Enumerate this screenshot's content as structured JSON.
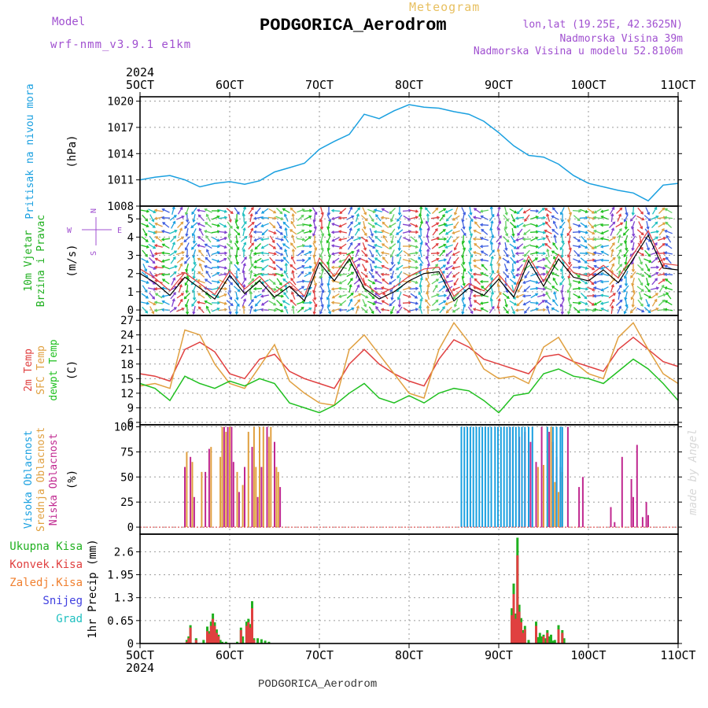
{
  "header": {
    "model_label": "Model",
    "model_name": "wrf-nmm_v3.9.1 e1km",
    "product": "Meteogram",
    "station": "PODGORICA_Aerodrom",
    "lonlat": "lon,lat (19.25E, 42.3625N)",
    "elevation": "Nadmorska Visina 39m",
    "elevation_model": "Nadmorska Visina u modelu 52.8106m"
  },
  "time_axis": {
    "year": "2024",
    "labels": [
      "5OCT",
      "6OCT",
      "7OCT",
      "8OCT",
      "9OCT",
      "10OCT",
      "11OCT"
    ]
  },
  "watermark": "made by Angel",
  "footer": "PODGORICA_Aerodrom",
  "colors": {
    "pressure": "#1aa0e0",
    "temp2m": "#e04040",
    "sfc": "#e0a040",
    "dewpt": "#20c020",
    "wind_label": "#20b020",
    "compass": "#a050d0",
    "low_cloud": "#c02890",
    "mid_cloud": "#e0a040",
    "high_cloud": "#1aa0e0",
    "total_precip": "#20b020",
    "conv_precip": "#e04040",
    "frz_precip": "#f08030",
    "snow": "#4040e0",
    "hail": "#20c0c0"
  },
  "chart_data": [
    {
      "type": "line",
      "name": "pressure",
      "ylabel_lines": [
        "Pritisak na nivou mora",
        "(hPa)"
      ],
      "ylim": [
        1008,
        1020.5
      ],
      "yticks": [
        1008,
        1011,
        1014,
        1017,
        1020
      ],
      "grid": true,
      "x_unit": "hours from 05 Oct 00 UTC",
      "series": [
        {
          "name": "Pritisak na nivou mora",
          "x": [
            0,
            4,
            8,
            12,
            16,
            20,
            24,
            28,
            32,
            36,
            40,
            44,
            48,
            52,
            56,
            60,
            64,
            68,
            72,
            76,
            80,
            84,
            88,
            92,
            96,
            100,
            104,
            108,
            112,
            116,
            120,
            124,
            128,
            132,
            136,
            140,
            144
          ],
          "values": [
            1011.0,
            1011.3,
            1011.5,
            1011.0,
            1010.2,
            1010.6,
            1010.8,
            1010.5,
            1010.9,
            1011.9,
            1012.4,
            1012.9,
            1014.5,
            1015.4,
            1016.2,
            1018.5,
            1018.0,
            1018.9,
            1019.6,
            1019.3,
            1019.2,
            1018.8,
            1018.5,
            1017.7,
            1016.4,
            1014.9,
            1013.8,
            1013.6,
            1012.8,
            1011.5,
            1010.6,
            1010.2,
            1009.8,
            1009.5,
            1008.6,
            1010.4,
            1010.6
          ]
        }
      ]
    },
    {
      "type": "line",
      "name": "wind",
      "ylabel_lines": [
        "10m Vjetar",
        "Brzina i Pravac",
        "(m/s)"
      ],
      "compass": [
        "N",
        "E",
        "S",
        "W"
      ],
      "ylim": [
        -0.3,
        5.7
      ],
      "yticks": [
        0,
        1,
        2,
        3,
        4,
        5
      ],
      "grid": true,
      "series": [
        {
          "name": "10m wind speed",
          "x": [
            0,
            4,
            8,
            12,
            16,
            20,
            24,
            28,
            32,
            36,
            40,
            44,
            48,
            52,
            56,
            60,
            64,
            68,
            72,
            76,
            80,
            84,
            88,
            92,
            96,
            100,
            104,
            108,
            112,
            116,
            120,
            124,
            128,
            132,
            136,
            140,
            144
          ],
          "values": [
            2.0,
            1.5,
            0.8,
            1.8,
            1.2,
            0.6,
            1.9,
            0.9,
            1.6,
            0.7,
            1.3,
            0.5,
            2.6,
            1.6,
            2.8,
            1.2,
            0.6,
            1.0,
            1.6,
            2.0,
            2.1,
            0.5,
            1.2,
            0.8,
            1.7,
            0.7,
            2.7,
            1.3,
            2.8,
            1.8,
            1.6,
            2.2,
            1.5,
            2.8,
            4.1,
            2.3,
            2.2
          ]
        }
      ],
      "barb_direction_deg": [
        130,
        280,
        45,
        200,
        310,
        90,
        160,
        20,
        250,
        120,
        330,
        70,
        180,
        260,
        40,
        140,
        300,
        210,
        100,
        350,
        60,
        230,
        170,
        290,
        10,
        150,
        240,
        80,
        320,
        190,
        110,
        270,
        30,
        200,
        140,
        60,
        300
      ]
    },
    {
      "type": "line",
      "name": "temperature",
      "ylabel_lines": [
        "2m Temp",
        "SFC Temp",
        "dewpt Temp",
        "(C)"
      ],
      "ylim": [
        5.5,
        28
      ],
      "yticks": [
        6,
        9,
        12,
        15,
        18,
        21,
        24,
        27
      ],
      "grid": true,
      "series": [
        {
          "name": "2m Temp",
          "x": [
            0,
            4,
            8,
            12,
            16,
            20,
            24,
            28,
            32,
            36,
            40,
            44,
            48,
            52,
            56,
            60,
            64,
            68,
            72,
            76,
            80,
            84,
            88,
            92,
            96,
            100,
            104,
            108,
            112,
            116,
            120,
            124,
            128,
            132,
            136,
            140,
            144
          ],
          "values": [
            16.0,
            15.5,
            14.5,
            21.0,
            22.5,
            20.5,
            16.0,
            15.0,
            19.0,
            20.0,
            16.5,
            15.0,
            14.0,
            13.0,
            18.0,
            21.0,
            18.0,
            16.0,
            14.5,
            13.5,
            19.0,
            23.0,
            21.5,
            19.0,
            18.0,
            17.0,
            16.0,
            19.5,
            20.0,
            18.5,
            17.5,
            16.5,
            21.0,
            23.5,
            21.0,
            18.5,
            17.5
          ]
        },
        {
          "name": "SFC Temp",
          "x": [
            0,
            4,
            8,
            12,
            16,
            20,
            24,
            28,
            32,
            36,
            40,
            44,
            48,
            52,
            56,
            60,
            64,
            68,
            72,
            76,
            80,
            84,
            88,
            92,
            96,
            100,
            104,
            108,
            112,
            116,
            120,
            124,
            128,
            132,
            136,
            140,
            144
          ],
          "values": [
            13.5,
            14.0,
            13.0,
            25.0,
            24.0,
            18.0,
            14.0,
            13.0,
            17.5,
            22.0,
            14.5,
            12.0,
            10.0,
            9.5,
            21.0,
            24.0,
            20.0,
            16.0,
            12.0,
            11.0,
            21.0,
            26.5,
            22.5,
            17.0,
            15.0,
            15.5,
            14.0,
            21.5,
            23.5,
            18.5,
            16.0,
            15.0,
            23.5,
            26.5,
            21.0,
            16.0,
            14.0
          ]
        },
        {
          "name": "dewpt Temp",
          "x": [
            0,
            4,
            8,
            12,
            16,
            20,
            24,
            28,
            32,
            36,
            40,
            44,
            48,
            52,
            56,
            60,
            64,
            68,
            72,
            76,
            80,
            84,
            88,
            92,
            96,
            100,
            104,
            108,
            112,
            116,
            120,
            124,
            128,
            132,
            136,
            140,
            144
          ],
          "values": [
            14.0,
            13.0,
            10.5,
            15.5,
            14.0,
            13.0,
            14.5,
            13.5,
            15.0,
            14.0,
            10.0,
            9.0,
            8.0,
            9.5,
            12.0,
            14.0,
            11.0,
            10.0,
            11.5,
            10.0,
            12.0,
            13.0,
            12.5,
            10.5,
            8.0,
            11.5,
            12.0,
            16.0,
            17.0,
            15.5,
            15.0,
            14.0,
            16.5,
            19.0,
            17.0,
            14.0,
            10.5
          ]
        }
      ]
    },
    {
      "type": "bar",
      "name": "cloud",
      "ylabel_lines": [
        "Visoka Oblacnost",
        "Srednja Oblacnost",
        "Niska Oblacnost",
        "(%)"
      ],
      "ylim": [
        -7,
        102
      ],
      "yticks": [
        0,
        25,
        50,
        75,
        100
      ],
      "grid": true,
      "series": [
        {
          "name": "Niska Oblacnost",
          "x": [
            12.0,
            13.5,
            14.5,
            17.5,
            18.5,
            22.5,
            23.5,
            24.5,
            25.0,
            26.5,
            28.0,
            30.0,
            31.5,
            32.5,
            34.0,
            36.0,
            37.5,
            99.0,
            101.5,
            103.0,
            104.5,
            106.0,
            107.5,
            109.5,
            110.5,
            111.5,
            112.5,
            114.5,
            117.5,
            118.5,
            126.0,
            127.0,
            129.0,
            131.5,
            132.0,
            133.0,
            134.5,
            135.5,
            136.0
          ],
          "values": [
            60,
            70,
            30,
            55,
            78,
            100,
            100,
            100,
            65,
            35,
            60,
            80,
            30,
            60,
            100,
            85,
            40,
            100,
            90,
            95,
            85,
            65,
            100,
            95,
            85,
            70,
            60,
            100,
            40,
            50,
            20,
            5,
            70,
            48,
            30,
            82,
            10,
            25,
            12
          ]
        },
        {
          "name": "Srednja Oblacnost",
          "x": [
            12.5,
            14.0,
            16.5,
            19.0,
            21.5,
            22.0,
            23.0,
            24.0,
            26.0,
            27.5,
            29.0,
            30.5,
            31.0,
            32.0,
            33.0,
            34.5,
            35.0,
            36.5,
            37.0,
            106.5,
            108.0,
            109.0,
            110.0,
            111.0,
            112.0,
            113.0
          ],
          "values": [
            75,
            65,
            55,
            80,
            70,
            100,
            95,
            100,
            55,
            42,
            95,
            100,
            60,
            100,
            100,
            90,
            100,
            60,
            55,
            60,
            62,
            100,
            100,
            45,
            35,
            55
          ]
        },
        {
          "name": "Visoka Oblacnost",
          "x": [
            86.0,
            86.8,
            87.6,
            88.4,
            89.2,
            90.0,
            90.8,
            91.6,
            92.4,
            93.2,
            94.0,
            95.0,
            95.8,
            96.6,
            97.4,
            98.2,
            99.0,
            99.8,
            100.6,
            101.4,
            102.2,
            103.0,
            104.0,
            105.0,
            109.0,
            110.5,
            111.5,
            112.5,
            113.0
          ],
          "values": [
            100,
            100,
            100,
            100,
            100,
            100,
            100,
            100,
            100,
            100,
            100,
            100,
            100,
            100,
            100,
            100,
            100,
            100,
            100,
            100,
            100,
            100,
            100,
            100,
            100,
            100,
            100,
            100,
            100
          ]
        }
      ]
    },
    {
      "type": "bar",
      "name": "precip",
      "ylabel_lines": [
        "1hr Precip (mm)"
      ],
      "legend": [
        "Ukupna Kisa",
        "Konvek.Kisa",
        "Zaledj.Kisa",
        "Snijeg",
        "Grad"
      ],
      "ylim": [
        0,
        3.1
      ],
      "yticks": [
        0,
        0.65,
        1.3,
        1.95,
        2.6
      ],
      "ytick_labels": [
        "0",
        "0.65",
        "1.3",
        "1.95",
        "2.6"
      ],
      "grid": true,
      "series": [
        {
          "name": "Ukupna Kisa",
          "x": [
            12.5,
            13.0,
            13.5,
            15.0,
            17.0,
            18.0,
            18.5,
            19.0,
            19.5,
            20.0,
            20.5,
            21.0,
            21.5,
            22.0,
            23.0,
            26.0,
            27.0,
            27.5,
            28.5,
            29.0,
            29.5,
            30.0,
            30.5,
            31.5,
            32.5,
            33.5,
            34.5,
            99.5,
            100.0,
            100.5,
            101.0,
            101.5,
            102.0,
            102.5,
            103.0,
            104.0,
            106.0,
            106.5,
            107.0,
            107.5,
            108.0,
            108.5,
            109.0,
            109.5,
            110.0,
            110.5,
            111.0,
            112.0,
            113.0,
            113.5
          ],
          "values": [
            0.1,
            0.2,
            0.52,
            0.15,
            0.1,
            0.48,
            0.35,
            0.62,
            0.85,
            0.6,
            0.4,
            0.25,
            0.1,
            0.05,
            0.05,
            0.05,
            0.45,
            0.2,
            0.62,
            0.7,
            0.55,
            1.2,
            0.15,
            0.15,
            0.12,
            0.08,
            0.05,
            1.0,
            1.7,
            0.85,
            3.0,
            1.1,
            0.72,
            0.38,
            0.5,
            0.1,
            0.62,
            0.18,
            0.3,
            0.2,
            0.25,
            0.15,
            0.38,
            0.2,
            0.25,
            0.08,
            0.1,
            0.52,
            0.38,
            0.15
          ]
        },
        {
          "name": "Konvek.Kisa",
          "x": [
            12.5,
            13.0,
            13.5,
            15.0,
            18.0,
            18.5,
            19.0,
            19.5,
            20.0,
            20.5,
            21.0,
            27.0,
            28.5,
            29.0,
            29.5,
            30.0,
            30.5,
            99.5,
            100.0,
            100.5,
            101.0,
            101.5,
            102.0,
            102.5,
            103.0,
            106.0,
            108.0,
            109.0,
            112.0,
            113.0
          ],
          "values": [
            0.05,
            0.15,
            0.45,
            0.1,
            0.35,
            0.28,
            0.5,
            0.7,
            0.5,
            0.3,
            0.2,
            0.38,
            0.5,
            0.6,
            0.45,
            1.0,
            0.1,
            0.8,
            1.4,
            0.7,
            2.5,
            0.9,
            0.6,
            0.3,
            0.4,
            0.5,
            0.2,
            0.3,
            0.4,
            0.3
          ]
        }
      ]
    }
  ]
}
